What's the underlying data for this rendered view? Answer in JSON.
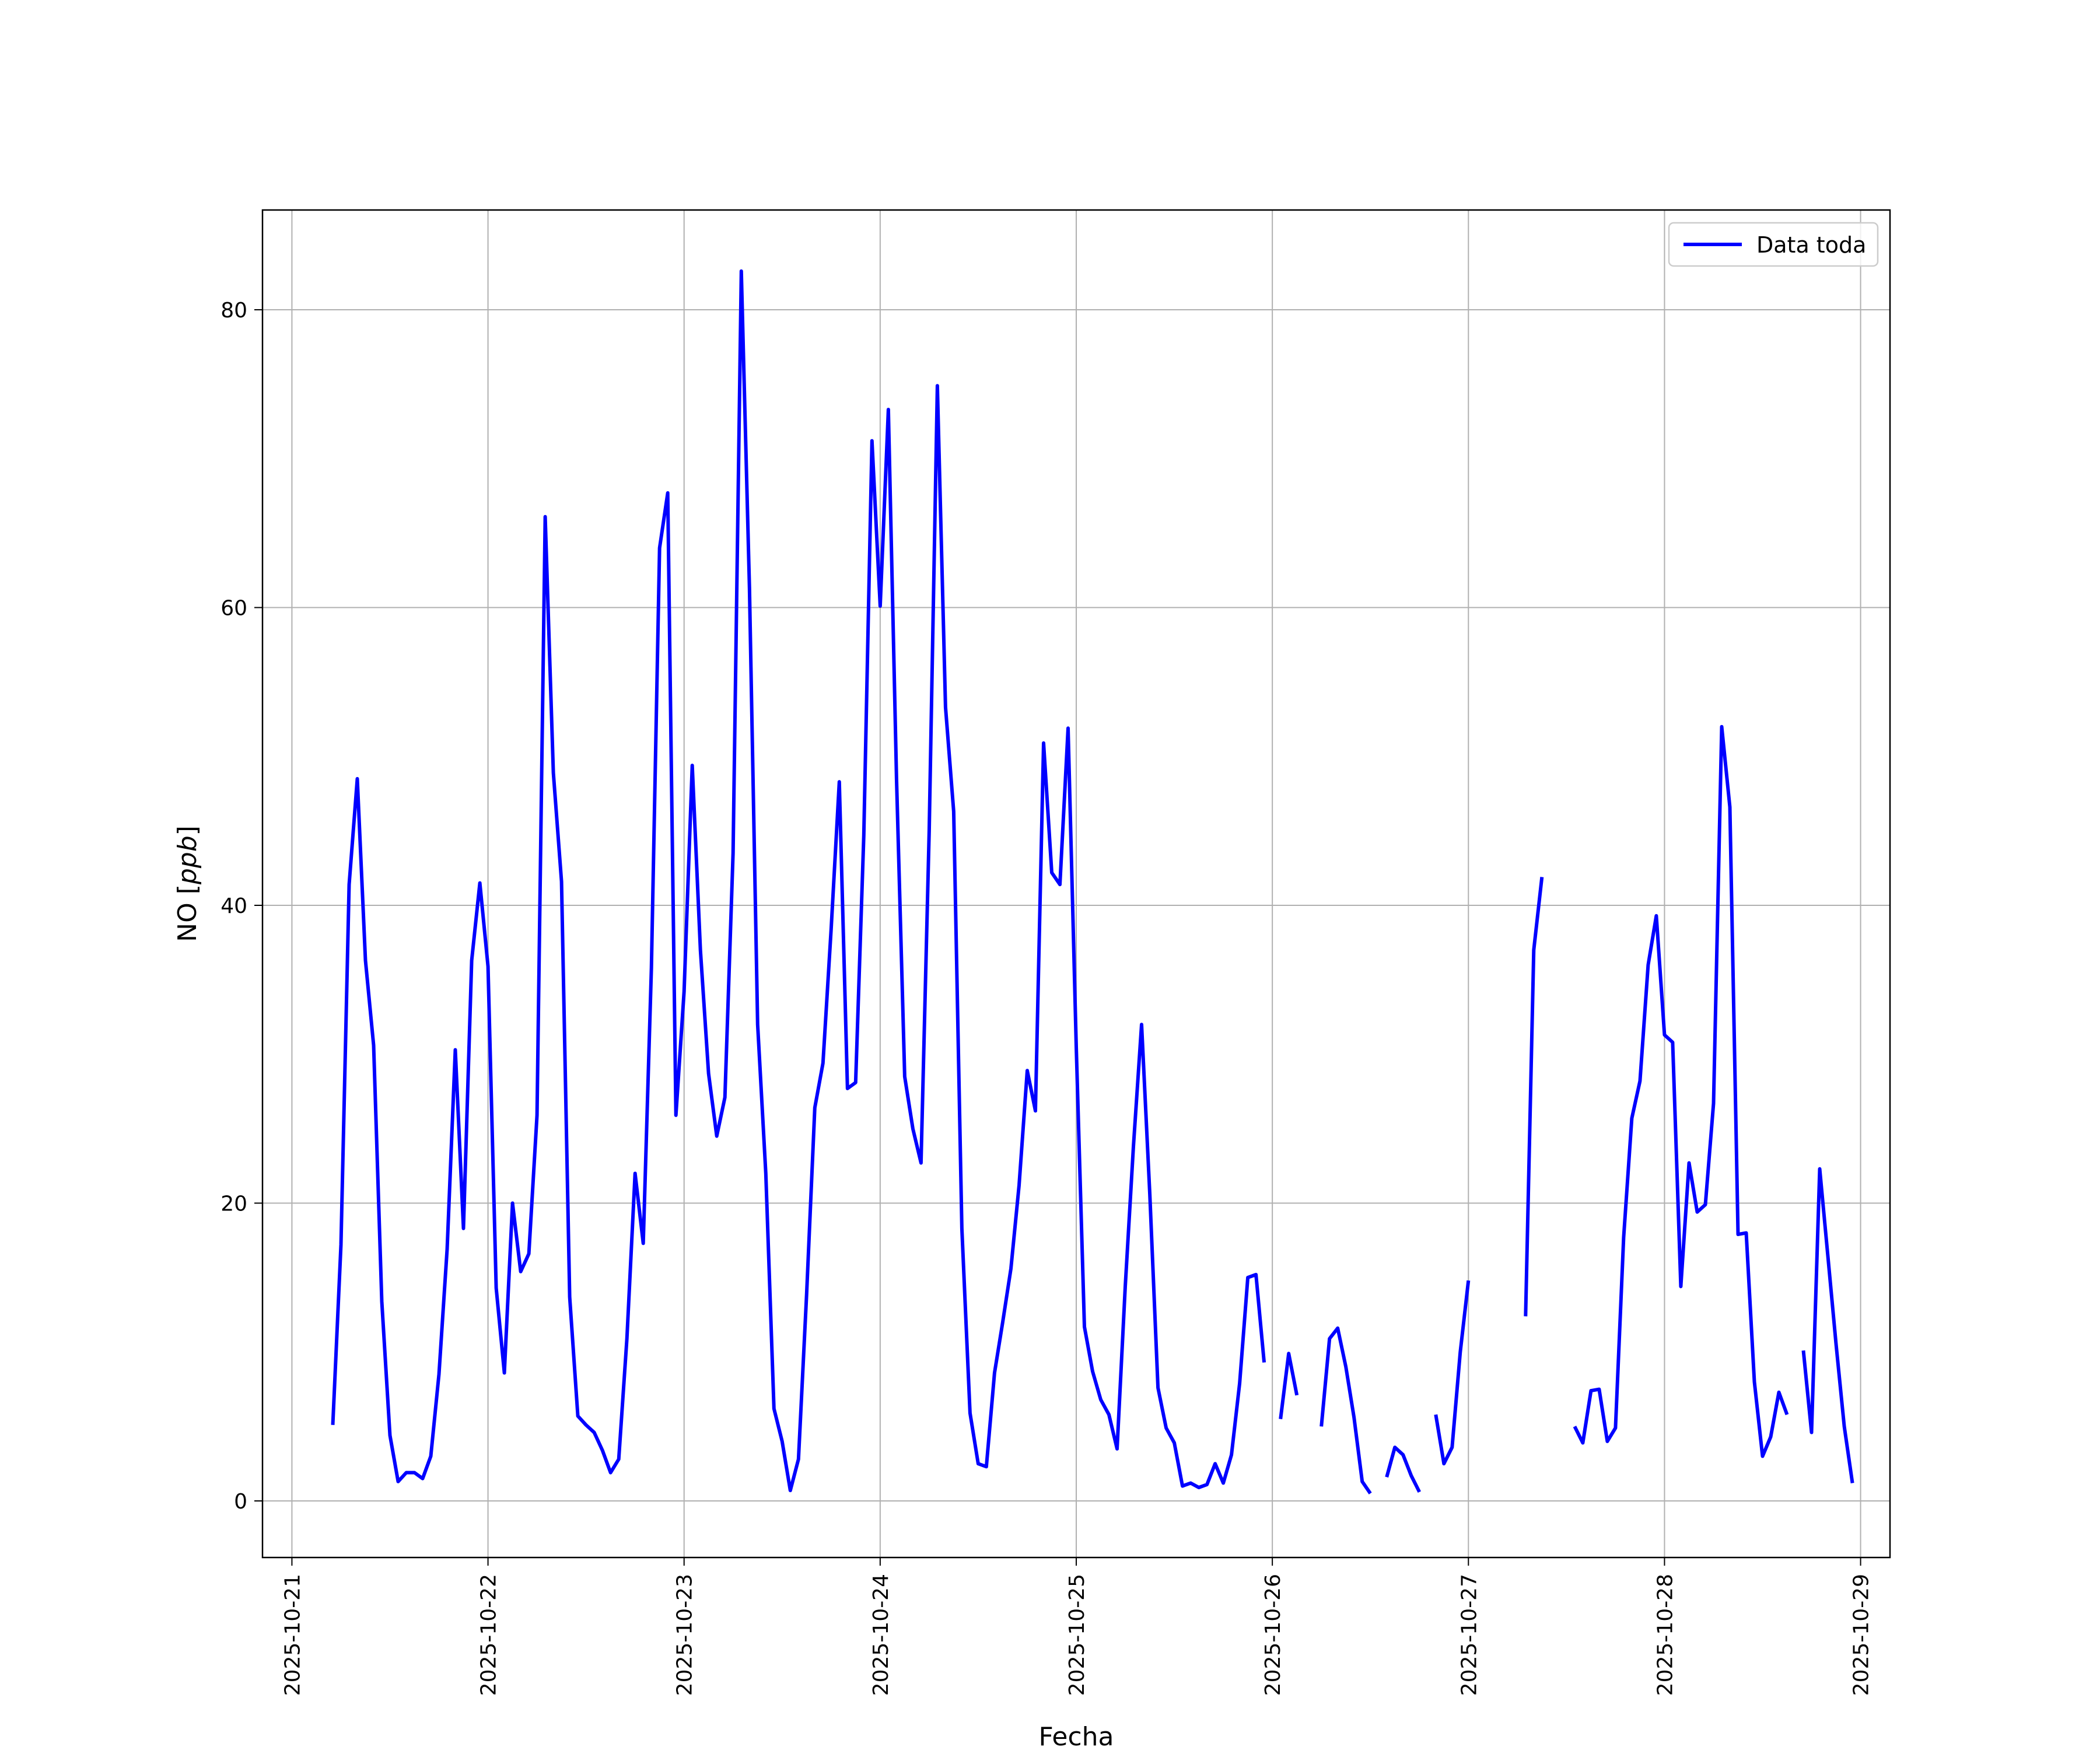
{
  "chart_data": {
    "type": "line",
    "xlabel": "Fecha",
    "ylabel": "NO [ppb]",
    "ylabel_text": "NO [",
    "ylabel_unit": "ppb",
    "ylabel_close": "]",
    "x_range": [
      "2025-10-20T20:24",
      "2025-10-29T03:36"
    ],
    "ylim": [
      -3.8,
      86.7
    ],
    "grid": true,
    "legend_position": "upper right",
    "x_ticks": [
      "2025-10-21",
      "2025-10-22",
      "2025-10-23",
      "2025-10-24",
      "2025-10-25",
      "2025-10-26",
      "2025-10-27",
      "2025-10-28",
      "2025-10-29"
    ],
    "y_ticks": [
      0,
      20,
      40,
      60,
      80
    ],
    "series": [
      {
        "name": "Data toda",
        "color": "#0000ff",
        "segments": [
          [
            [
              "2025-10-21T05:00",
              5.1
            ],
            [
              "2025-10-21T06:00",
              17.2
            ],
            [
              "2025-10-21T07:00",
              41.4
            ],
            [
              "2025-10-21T08:00",
              48.5
            ],
            [
              "2025-10-21T09:00",
              36.3
            ],
            [
              "2025-10-21T10:00",
              30.6
            ],
            [
              "2025-10-21T11:00",
              13.4
            ],
            [
              "2025-10-21T12:00",
              4.4
            ],
            [
              "2025-10-21T13:00",
              1.3
            ],
            [
              "2025-10-21T14:00",
              1.9
            ],
            [
              "2025-10-21T15:00",
              1.9
            ],
            [
              "2025-10-21T16:00",
              1.5
            ],
            [
              "2025-10-21T17:00",
              3.0
            ],
            [
              "2025-10-21T18:00",
              8.5
            ],
            [
              "2025-10-21T19:00",
              16.9
            ],
            [
              "2025-10-21T20:00",
              30.3
            ],
            [
              "2025-10-21T21:00",
              18.3
            ],
            [
              "2025-10-21T22:00",
              36.3
            ],
            [
              "2025-10-21T23:00",
              41.5
            ],
            [
              "2025-10-22T00:00",
              35.9
            ],
            [
              "2025-10-22T01:00",
              14.3
            ],
            [
              "2025-10-22T02:00",
              8.6
            ],
            [
              "2025-10-22T03:00",
              20.0
            ],
            [
              "2025-10-22T04:00",
              15.4
            ],
            [
              "2025-10-22T05:00",
              16.6
            ],
            [
              "2025-10-22T06:00",
              25.9
            ],
            [
              "2025-10-22T07:00",
              66.1
            ],
            [
              "2025-10-22T08:00",
              48.9
            ],
            [
              "2025-10-22T09:00",
              41.6
            ],
            [
              "2025-10-22T10:00",
              13.7
            ],
            [
              "2025-10-22T11:00",
              5.7
            ],
            [
              "2025-10-22T12:00",
              5.1
            ],
            [
              "2025-10-22T13:00",
              4.6
            ],
            [
              "2025-10-22T14:00",
              3.4
            ],
            [
              "2025-10-22T15:00",
              1.9
            ],
            [
              "2025-10-22T16:00",
              2.8
            ],
            [
              "2025-10-22T17:00",
              10.9
            ],
            [
              "2025-10-22T18:00",
              22.0
            ],
            [
              "2025-10-22T19:00",
              17.3
            ],
            [
              "2025-10-22T20:00",
              35.8
            ],
            [
              "2025-10-22T21:00",
              64.0
            ],
            [
              "2025-10-22T22:00",
              67.7
            ],
            [
              "2025-10-22T23:00",
              25.9
            ],
            [
              "2025-10-23T00:00",
              34.2
            ],
            [
              "2025-10-23T01:00",
              49.4
            ],
            [
              "2025-10-23T02:00",
              37.0
            ],
            [
              "2025-10-23T03:00",
              28.7
            ],
            [
              "2025-10-23T04:00",
              24.5
            ],
            [
              "2025-10-23T05:00",
              27.1
            ],
            [
              "2025-10-23T06:00",
              43.5
            ],
            [
              "2025-10-23T07:00",
              82.6
            ],
            [
              "2025-10-23T08:00",
              61.3
            ],
            [
              "2025-10-23T09:00",
              32.0
            ],
            [
              "2025-10-23T10:00",
              22.0
            ],
            [
              "2025-10-23T11:00",
              6.2
            ],
            [
              "2025-10-23T12:00",
              4.0
            ],
            [
              "2025-10-23T13:00",
              0.7
            ],
            [
              "2025-10-23T14:00",
              2.8
            ],
            [
              "2025-10-23T15:00",
              13.9
            ],
            [
              "2025-10-23T16:00",
              26.4
            ],
            [
              "2025-10-23T17:00",
              29.4
            ],
            [
              "2025-10-23T18:00",
              38.4
            ],
            [
              "2025-10-23T19:00",
              48.3
            ],
            [
              "2025-10-23T20:00",
              27.7
            ],
            [
              "2025-10-23T21:00",
              28.1
            ],
            [
              "2025-10-23T22:00",
              44.7
            ],
            [
              "2025-10-23T23:00",
              71.2
            ],
            [
              "2025-10-24T00:00",
              60.1
            ],
            [
              "2025-10-24T01:00",
              73.3
            ],
            [
              "2025-10-24T02:00",
              48.5
            ],
            [
              "2025-10-24T03:00",
              28.5
            ],
            [
              "2025-10-24T04:00",
              25.0
            ],
            [
              "2025-10-24T05:00",
              22.7
            ],
            [
              "2025-10-24T06:00",
              45.0
            ],
            [
              "2025-10-24T07:00",
              74.9
            ],
            [
              "2025-10-24T08:00",
              53.3
            ],
            [
              "2025-10-24T09:00",
              46.3
            ],
            [
              "2025-10-24T10:00",
              18.3
            ],
            [
              "2025-10-24T11:00",
              5.9
            ],
            [
              "2025-10-24T12:00",
              2.5
            ],
            [
              "2025-10-24T13:00",
              2.3
            ],
            [
              "2025-10-24T14:00",
              8.6
            ],
            [
              "2025-10-24T15:00",
              12.0
            ],
            [
              "2025-10-24T16:00",
              15.6
            ],
            [
              "2025-10-24T17:00",
              21.2
            ],
            [
              "2025-10-24T18:00",
              28.9
            ],
            [
              "2025-10-24T19:00",
              26.2
            ],
            [
              "2025-10-24T20:00",
              50.9
            ],
            [
              "2025-10-24T21:00",
              42.2
            ],
            [
              "2025-10-24T22:00",
              41.4
            ],
            [
              "2025-10-24T23:00",
              51.9
            ],
            [
              "2025-10-25T00:00",
              30.5
            ],
            [
              "2025-10-25T01:00",
              11.7
            ],
            [
              "2025-10-25T02:00",
              8.7
            ],
            [
              "2025-10-25T03:00",
              6.8
            ],
            [
              "2025-10-25T04:00",
              5.8
            ],
            [
              "2025-10-25T05:00",
              3.5
            ],
            [
              "2025-10-25T06:00",
              14.4
            ],
            [
              "2025-10-25T07:00",
              23.8
            ],
            [
              "2025-10-25T08:00",
              32.0
            ],
            [
              "2025-10-25T09:00",
              20.6
            ],
            [
              "2025-10-25T10:00",
              7.6
            ],
            [
              "2025-10-25T11:00",
              4.9
            ],
            [
              "2025-10-25T12:00",
              3.9
            ],
            [
              "2025-10-25T13:00",
              1.0
            ],
            [
              "2025-10-25T14:00",
              1.2
            ],
            [
              "2025-10-25T15:00",
              0.9
            ],
            [
              "2025-10-25T16:00",
              1.1
            ],
            [
              "2025-10-25T17:00",
              2.5
            ],
            [
              "2025-10-25T18:00",
              1.2
            ],
            [
              "2025-10-25T19:00",
              3.1
            ],
            [
              "2025-10-25T20:00",
              7.9
            ],
            [
              "2025-10-25T21:00",
              15.0
            ],
            [
              "2025-10-25T22:00",
              15.2
            ],
            [
              "2025-10-25T23:00",
              9.3
            ]
          ],
          [
            [
              "2025-10-26T01:00",
              5.5
            ],
            [
              "2025-10-26T02:00",
              9.9
            ],
            [
              "2025-10-26T03:00",
              7.1
            ]
          ],
          [
            [
              "2025-10-26T06:00",
              5.0
            ],
            [
              "2025-10-26T07:00",
              10.9
            ],
            [
              "2025-10-26T08:00",
              11.6
            ],
            [
              "2025-10-26T09:00",
              9.0
            ],
            [
              "2025-10-26T10:00",
              5.6
            ],
            [
              "2025-10-26T11:00",
              1.3
            ],
            [
              "2025-10-26T12:00",
              0.5
            ]
          ],
          [
            [
              "2025-10-26T14:00",
              1.6
            ],
            [
              "2025-10-26T15:00",
              3.6
            ],
            [
              "2025-10-26T16:00",
              3.1
            ],
            [
              "2025-10-26T17:00",
              1.7
            ],
            [
              "2025-10-26T18:00",
              0.6
            ]
          ],
          [
            [
              "2025-10-26T20:00",
              5.8
            ],
            [
              "2025-10-26T21:00",
              2.5
            ],
            [
              "2025-10-26T22:00",
              3.6
            ],
            [
              "2025-10-26T23:00",
              10.0
            ],
            [
              "2025-10-27T00:00",
              14.8
            ]
          ],
          [
            [
              "2025-10-27T07:00",
              12.4
            ],
            [
              "2025-10-27T08:00",
              37.0
            ],
            [
              "2025-10-27T09:00",
              41.9
            ]
          ],
          [
            [
              "2025-10-27T13:00",
              5.0
            ],
            [
              "2025-10-27T14:00",
              3.9
            ],
            [
              "2025-10-27T15:00",
              7.4
            ],
            [
              "2025-10-27T16:00",
              7.5
            ],
            [
              "2025-10-27T17:00",
              4.0
            ],
            [
              "2025-10-27T18:00",
              4.9
            ],
            [
              "2025-10-27T19:00",
              17.7
            ],
            [
              "2025-10-27T20:00",
              25.7
            ],
            [
              "2025-10-27T21:00",
              28.2
            ],
            [
              "2025-10-27T22:00",
              36.0
            ],
            [
              "2025-10-27T23:00",
              39.3
            ],
            [
              "2025-10-28T00:00",
              31.3
            ],
            [
              "2025-10-28T01:00",
              30.8
            ],
            [
              "2025-10-28T02:00",
              14.4
            ],
            [
              "2025-10-28T03:00",
              22.7
            ],
            [
              "2025-10-28T04:00",
              19.4
            ],
            [
              "2025-10-28T05:00",
              19.9
            ],
            [
              "2025-10-28T06:00",
              26.7
            ],
            [
              "2025-10-28T07:00",
              52.0
            ],
            [
              "2025-10-28T08:00",
              46.6
            ],
            [
              "2025-10-28T09:00",
              17.9
            ],
            [
              "2025-10-28T10:00",
              18.0
            ],
            [
              "2025-10-28T11:00",
              8.0
            ],
            [
              "2025-10-28T12:00",
              3.0
            ],
            [
              "2025-10-28T13:00",
              4.3
            ],
            [
              "2025-10-28T14:00",
              7.3
            ],
            [
              "2025-10-28T15:00",
              5.8
            ]
          ],
          [
            [
              "2025-10-28T17:00",
              10.1
            ],
            [
              "2025-10-28T18:00",
              4.6
            ],
            [
              "2025-10-28T19:00",
              22.3
            ],
            [
              "2025-10-28T20:00",
              16.4
            ],
            [
              "2025-10-28T21:00",
              10.5
            ],
            [
              "2025-10-28T22:00",
              5.0
            ],
            [
              "2025-10-28T23:00",
              1.2
            ]
          ]
        ]
      }
    ]
  }
}
